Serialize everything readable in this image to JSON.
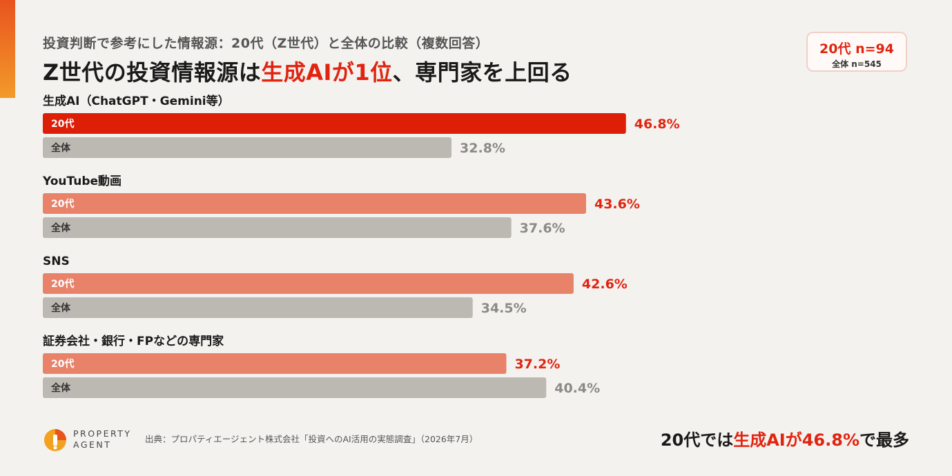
{
  "header": {
    "subtitle": "投資判断で参考にした情報源：20代（Z世代）と全体の比較（複数回答）",
    "title_part1": "Z世代の投資情報源は",
    "title_highlight": "生成AIが1位",
    "title_part2": "、専門家を上回る"
  },
  "sample": {
    "main": "20代 n=94",
    "sub": "全体 n=545"
  },
  "chart_data": {
    "type": "bar",
    "orientation": "horizontal",
    "categories": [
      "生成AI（ChatGPT・Gemini等）",
      "YouTube動画",
      "SNS",
      "証券会社・銀行・FPなどの専門家"
    ],
    "series": [
      {
        "name": "20代",
        "values": [
          46.8,
          43.6,
          42.6,
          37.2
        ],
        "color": "#e8836a",
        "highlight_color": "#dd1f08",
        "label_color": "#e02410"
      },
      {
        "name": "全体",
        "values": [
          32.8,
          37.6,
          34.5,
          40.4
        ],
        "color": "#bcb8b2",
        "label_color": "#8c8a86"
      }
    ],
    "value_suffix": "%",
    "highlight_index": 0,
    "xlim": [
      0,
      100
    ]
  },
  "footer": {
    "logo_line1": "PROPERTY",
    "logo_line2": "AGENT",
    "source": "出典：プロパティエージェント株式会社「投資へのAI活用の実態調査」（2026年7月）",
    "conclusion_part1": "20代では",
    "conclusion_highlight": "生成AIが46.8%",
    "conclusion_part2": "で最多"
  },
  "colors": {
    "accent": "#e02410",
    "background": "#f4f2ef"
  }
}
